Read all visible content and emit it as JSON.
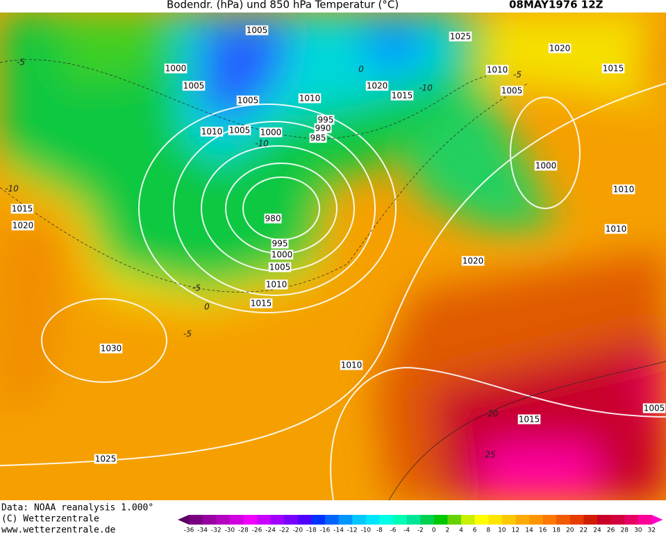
{
  "header": {
    "title": "Bodendr. (hPa) und 850 hPa Temperatur (°C)",
    "date": "08MAY1976 12Z"
  },
  "isobar_labels": [
    "1005",
    "1000",
    "1005",
    "1005",
    "1010",
    "1010",
    "1005",
    "1000",
    "995",
    "990",
    "985",
    "980",
    "995",
    "1000",
    "1005",
    "1010",
    "1015",
    "1020",
    "1015",
    "1025",
    "1020",
    "1015",
    "1010",
    "1005",
    "1000",
    "1010",
    "1010",
    "1020",
    "1015",
    "1020",
    "1030",
    "1010",
    "1015",
    "1025",
    "1005"
  ],
  "temperature_labels": [
    "-10",
    "-10",
    "-10",
    "-5",
    "-5",
    "0",
    "-5",
    "-5",
    "20",
    "25",
    "0"
  ],
  "footer": [
    "Data: NOAA reanalysis 1.000°",
    "(C) Wetterzentrale",
    "www.wetterzentrale.de"
  ],
  "colorbar": {
    "ticks": [
      -36,
      -34,
      -32,
      -30,
      -28,
      -26,
      -24,
      -22,
      -20,
      -18,
      -16,
      -14,
      -12,
      -10,
      -8,
      -6,
      -4,
      -2,
      0,
      2,
      4,
      6,
      8,
      10,
      12,
      14,
      16,
      18,
      20,
      22,
      24,
      26,
      28,
      30,
      32
    ],
    "colors": [
      "#5a0060",
      "#780080",
      "#9600a0",
      "#b400c0",
      "#d200e0",
      "#f000ff",
      "#c800ff",
      "#a000ff",
      "#7800ff",
      "#5000ff",
      "#0032ff",
      "#0064ff",
      "#0096ff",
      "#00c8ff",
      "#00e6ff",
      "#00ffe6",
      "#00ffb4",
      "#00e696",
      "#00d250",
      "#00c800",
      "#64d200",
      "#c8f000",
      "#ffff00",
      "#ffe600",
      "#ffc800",
      "#ffaa00",
      "#ff9600",
      "#ff7800",
      "#f05a00",
      "#e63c00",
      "#d21e00",
      "#c80028",
      "#d2003c",
      "#e60064",
      "#ff0096",
      "#ff00c8"
    ]
  }
}
